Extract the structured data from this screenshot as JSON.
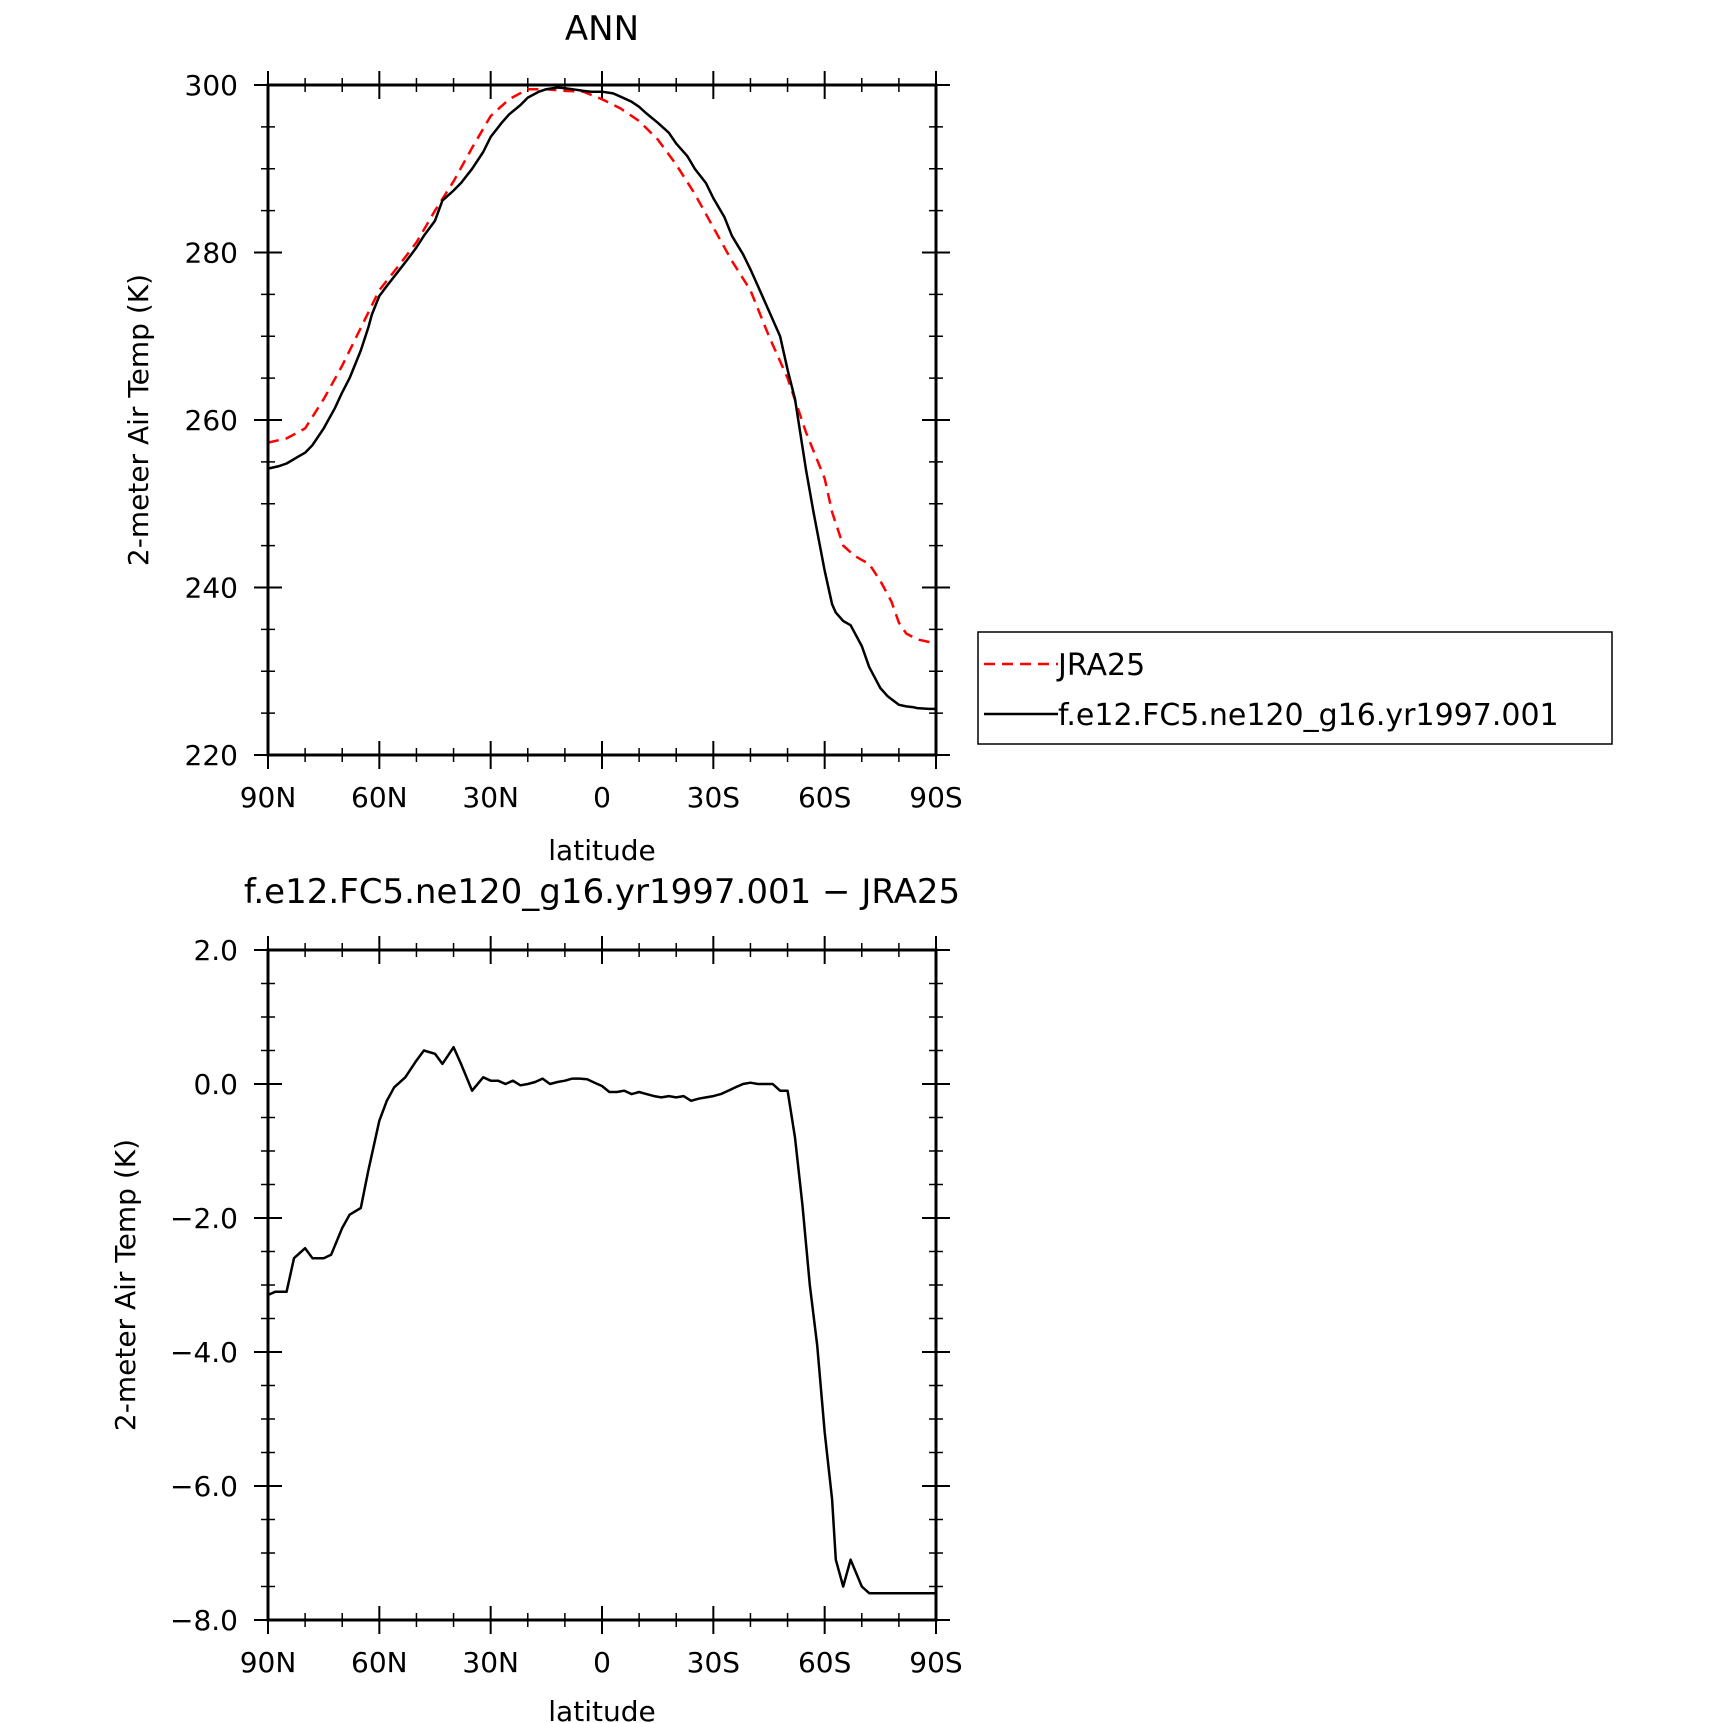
{
  "chart_data": [
    {
      "type": "line",
      "title": "ANN",
      "xlabel": "latitude",
      "ylabel": "2-meter Air Temp (K)",
      "xlim": [
        90,
        -90
      ],
      "ylim": [
        220,
        300
      ],
      "x_ticks": [
        90,
        60,
        30,
        0,
        -30,
        -60,
        -90
      ],
      "x_tick_labels": [
        "90N",
        "60N",
        "30N",
        "0",
        "30S",
        "60S",
        "90S"
      ],
      "y_ticks": [
        220,
        240,
        260,
        280,
        300
      ],
      "y_tick_labels": [
        "220",
        "240",
        "260",
        "280",
        "300"
      ],
      "grid": false,
      "legend_position": "right-outside",
      "series": [
        {
          "name": "JRA25",
          "color": "#ff0000",
          "dash": "dashed",
          "x": [
            90,
            85,
            80,
            75,
            70,
            65,
            60,
            55,
            50,
            45,
            40,
            35,
            30,
            25,
            20,
            15,
            10,
            5,
            0,
            -5,
            -10,
            -15,
            -20,
            -25,
            -30,
            -35,
            -40,
            -45,
            -50,
            -55,
            -60,
            -62,
            -65,
            -68,
            -70,
            -72,
            -75,
            -78,
            -80,
            -82,
            -85,
            -88,
            -90
          ],
          "y": [
            257.3,
            257.8,
            259.0,
            262.5,
            266.5,
            271.0,
            275.5,
            278.3,
            281.2,
            285.0,
            288.5,
            292.5,
            296.3,
            298.3,
            299.5,
            299.5,
            299.3,
            299.2,
            298.3,
            297.2,
            295.7,
            293.5,
            290.5,
            287.0,
            283.0,
            279.0,
            275.5,
            270.0,
            265.0,
            258.5,
            253.0,
            249.0,
            245.0,
            243.8,
            243.3,
            242.8,
            240.8,
            238.3,
            235.8,
            234.5,
            233.8,
            233.5,
            233.3
          ]
        },
        {
          "name": "f.e12.FC5.ne120_g16.yr1997.001",
          "color": "#000000",
          "dash": "solid",
          "x": [
            90,
            87,
            85,
            82,
            80,
            78,
            75,
            72,
            70,
            68,
            65,
            63,
            62,
            60,
            58,
            55,
            52,
            50,
            48,
            45,
            43,
            41,
            40,
            38,
            35,
            32,
            30,
            27,
            25,
            22,
            20,
            17,
            15,
            12,
            10,
            8,
            5,
            3,
            0,
            -3,
            -5,
            -8,
            -10,
            -12,
            -15,
            -18,
            -20,
            -23,
            -25,
            -28,
            -30,
            -33,
            -35,
            -38,
            -40,
            -42,
            -45,
            -48,
            -50,
            -52,
            -55,
            -57,
            -60,
            -62,
            -63,
            -65,
            -67,
            -70,
            -72,
            -75,
            -77,
            -80,
            -82,
            -84,
            -85,
            -88,
            -90
          ],
          "y": [
            254.2,
            254.5,
            254.8,
            255.6,
            256.1,
            257.0,
            259.0,
            261.4,
            263.3,
            265.0,
            268.3,
            271.0,
            272.6,
            274.8,
            276.0,
            277.7,
            279.4,
            280.6,
            282.0,
            283.8,
            286.2,
            287.0,
            287.4,
            288.3,
            290.0,
            292.0,
            293.8,
            295.5,
            296.5,
            297.6,
            298.5,
            299.2,
            299.5,
            299.7,
            299.6,
            299.5,
            299.3,
            299.2,
            299.2,
            299.0,
            298.6,
            298.0,
            297.4,
            296.6,
            295.5,
            294.3,
            293.0,
            291.5,
            290.0,
            288.3,
            286.5,
            284.2,
            282.0,
            279.8,
            278.0,
            276.0,
            273.0,
            270.0,
            266.0,
            262.5,
            254.0,
            249.0,
            242.0,
            238.0,
            237.0,
            236.0,
            235.5,
            233.0,
            230.5,
            228.0,
            227.0,
            226.0,
            225.8,
            225.7,
            225.6,
            225.5,
            225.5
          ]
        }
      ]
    },
    {
      "type": "line",
      "title": "f.e12.FC5.ne120_g16.yr1997.001 − JRA25",
      "xlabel": "latitude",
      "ylabel": "2-meter Air Temp (K)",
      "xlim": [
        90,
        -90
      ],
      "ylim": [
        -8.0,
        2.0
      ],
      "x_ticks": [
        90,
        60,
        30,
        0,
        -30,
        -60,
        -90
      ],
      "x_tick_labels": [
        "90N",
        "60N",
        "30N",
        "0",
        "30S",
        "60S",
        "90S"
      ],
      "y_ticks": [
        -8,
        -6,
        -4,
        -2,
        0,
        2
      ],
      "y_tick_labels": [
        "−8.0",
        "−6.0",
        "−4.0",
        "−2.0",
        "0.0",
        "2.0"
      ],
      "grid": false,
      "series": [
        {
          "color": "#000000",
          "dash": "solid",
          "x": [
            90,
            88,
            85,
            83,
            80,
            78,
            75,
            73,
            70,
            68,
            65,
            63,
            60,
            58,
            56,
            53,
            50,
            48,
            45,
            43,
            40,
            38,
            35,
            32,
            30,
            28,
            26,
            24,
            22,
            20,
            18,
            16,
            14,
            12,
            10,
            8,
            6,
            4,
            2,
            0,
            -2,
            -4,
            -6,
            -8,
            -10,
            -12,
            -14,
            -16,
            -18,
            -20,
            -22,
            -24,
            -26,
            -28,
            -30,
            -32,
            -34,
            -36,
            -38,
            -40,
            -42,
            -44,
            -46,
            -48,
            -50,
            -52,
            -54,
            -56,
            -58,
            -60,
            -62,
            -63,
            -65,
            -67,
            -70,
            -72,
            -75,
            -77,
            -80,
            -82,
            -85,
            -87,
            -90
          ],
          "y": [
            -3.15,
            -3.1,
            -3.1,
            -2.6,
            -2.45,
            -2.6,
            -2.6,
            -2.55,
            -2.15,
            -1.95,
            -1.85,
            -1.3,
            -0.55,
            -0.25,
            -0.05,
            0.1,
            0.35,
            0.5,
            0.45,
            0.3,
            0.55,
            0.3,
            -0.1,
            0.1,
            0.05,
            0.05,
            0.0,
            0.05,
            -0.02,
            0.0,
            0.03,
            0.08,
            0.0,
            0.03,
            0.05,
            0.08,
            0.08,
            0.07,
            0.02,
            -0.03,
            -0.12,
            -0.12,
            -0.1,
            -0.15,
            -0.12,
            -0.15,
            -0.18,
            -0.2,
            -0.18,
            -0.2,
            -0.18,
            -0.25,
            -0.22,
            -0.2,
            -0.18,
            -0.15,
            -0.1,
            -0.05,
            0.0,
            0.02,
            0.0,
            0.0,
            0.0,
            -0.1,
            -0.1,
            -0.8,
            -1.8,
            -3.0,
            -3.9,
            -5.2,
            -6.2,
            -7.1,
            -7.5,
            -7.1,
            -7.5,
            -7.6,
            -7.6,
            -7.6,
            -7.6,
            -7.6,
            -7.6,
            -7.6,
            -7.6
          ]
        }
      ]
    }
  ]
}
